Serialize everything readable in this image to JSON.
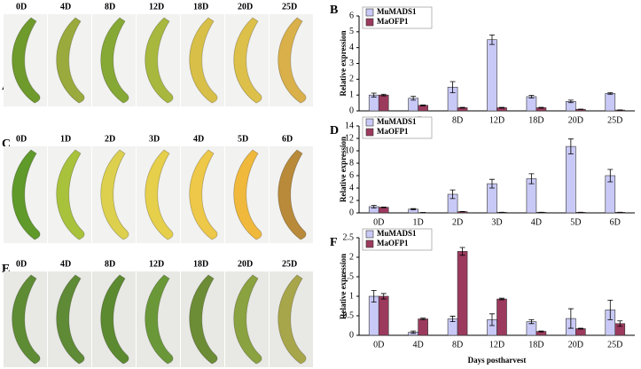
{
  "photo_panels": [
    {
      "letter": "A",
      "photos": [
        {
          "label": "0D",
          "color": "#6f9a2c"
        },
        {
          "label": "4D",
          "color": "#9aaa3c"
        },
        {
          "label": "8D",
          "color": "#86a835"
        },
        {
          "label": "12D",
          "color": "#a8b83e"
        },
        {
          "label": "18D",
          "color": "#d8c048"
        },
        {
          "label": "20D",
          "color": "#dcc04a"
        },
        {
          "label": "25D",
          "color": "#d9b04a"
        }
      ]
    },
    {
      "letter": "C",
      "photos": [
        {
          "label": "0D",
          "color": "#5f9a2a"
        },
        {
          "label": "1D",
          "color": "#a8c23c"
        },
        {
          "label": "2D",
          "color": "#dcd04e"
        },
        {
          "label": "3D",
          "color": "#e6cf4a"
        },
        {
          "label": "4D",
          "color": "#eec848"
        },
        {
          "label": "5D",
          "color": "#f0b93c"
        },
        {
          "label": "6D",
          "color": "#b88a3a"
        }
      ]
    },
    {
      "letter": "E",
      "photos": [
        {
          "label": "0D",
          "color": "#5e8c34"
        },
        {
          "label": "4D",
          "color": "#5f8a36"
        },
        {
          "label": "8D",
          "color": "#5c8a30"
        },
        {
          "label": "12D",
          "color": "#6a9838"
        },
        {
          "label": "18D",
          "color": "#6c8c36"
        },
        {
          "label": "20D",
          "color": "#8aa240"
        },
        {
          "label": "25D",
          "color": "#a8a64a"
        }
      ]
    }
  ],
  "chart_data": [
    {
      "type": "bar",
      "letter": "B",
      "y_label": "Relative expression",
      "categories": [
        "0D",
        "4D",
        "8D",
        "12D",
        "18D",
        "20D",
        "25D"
      ],
      "series": [
        {
          "name": "MuMADS1",
          "color": "#c9c9f7",
          "values": [
            1.0,
            0.8,
            1.5,
            4.5,
            0.9,
            0.6,
            1.1
          ],
          "errors": [
            0.12,
            0.12,
            0.35,
            0.3,
            0.08,
            0.08,
            0.05
          ]
        },
        {
          "name": "MaOFP1",
          "color": "#9c3a5e",
          "values": [
            1.0,
            0.35,
            0.2,
            0.2,
            0.2,
            0.1,
            0.05
          ],
          "errors": [
            0.05,
            0.03,
            0.02,
            0.02,
            0.02,
            0.01,
            0.01
          ]
        }
      ],
      "ylim": [
        0,
        6
      ],
      "yticks": [
        0,
        1,
        2,
        3,
        4,
        5,
        6
      ],
      "legend": "top-left"
    },
    {
      "type": "bar",
      "letter": "D",
      "y_label": "Relative expression",
      "categories": [
        "0D",
        "1D",
        "2D",
        "3D",
        "4D",
        "5D",
        "6D"
      ],
      "series": [
        {
          "name": "MuMADS1",
          "color": "#c9c9f7",
          "values": [
            1.0,
            0.6,
            3.0,
            4.7,
            5.5,
            10.7,
            6.0
          ],
          "errors": [
            0.2,
            0.1,
            0.7,
            0.7,
            0.8,
            1.2,
            1.0
          ]
        },
        {
          "name": "MaOFP1",
          "color": "#9c3a5e",
          "values": [
            0.9,
            0.05,
            0.2,
            0.1,
            0.1,
            0.1,
            0.1
          ],
          "errors": [
            0.05,
            0.01,
            0.02,
            0.01,
            0.01,
            0.01,
            0.01
          ]
        }
      ],
      "ylim": [
        0,
        14
      ],
      "yticks": [
        0,
        2,
        4,
        6,
        8,
        10,
        12,
        14
      ],
      "legend": "top-left"
    },
    {
      "type": "bar",
      "letter": "F",
      "y_label": "Relative expression",
      "x_label": "Days postharvest",
      "categories": [
        "0D",
        "4D",
        "8D",
        "12D",
        "18D",
        "20D",
        "25D"
      ],
      "series": [
        {
          "name": "MuMADS1",
          "color": "#c9c9f7",
          "values": [
            1.0,
            0.08,
            0.42,
            0.4,
            0.35,
            0.43,
            0.65
          ],
          "errors": [
            0.15,
            0.03,
            0.07,
            0.15,
            0.05,
            0.25,
            0.25
          ]
        },
        {
          "name": "MaOFP1",
          "color": "#9c3a5e",
          "values": [
            1.0,
            0.42,
            2.15,
            0.93,
            0.1,
            0.17,
            0.3
          ],
          "errors": [
            0.07,
            0.02,
            0.1,
            0.02,
            0.01,
            0.01,
            0.07
          ]
        }
      ],
      "ylim": [
        0,
        2.5
      ],
      "yticks": [
        0,
        0.5,
        1,
        1.5,
        2,
        2.5
      ],
      "legend": "top-left"
    }
  ]
}
